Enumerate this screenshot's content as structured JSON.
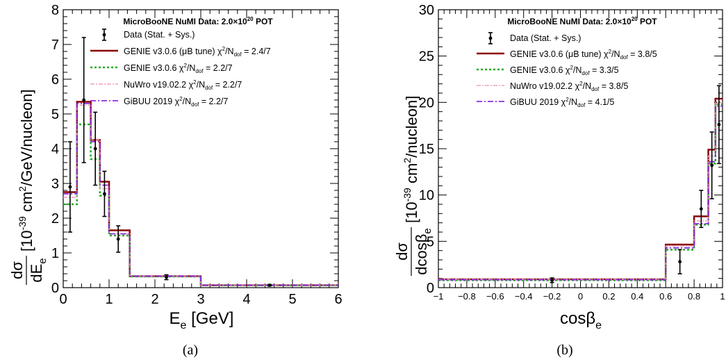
{
  "captions": [
    "(a)",
    "(b)"
  ],
  "chart_data": [
    {
      "type": "line",
      "title_main": "MicroBooNE NuMI Data: 2.0×10",
      "title_sup": "20",
      "title_tail": " POT",
      "xlabel": "E",
      "xlabel_sub": "e",
      "xlabel_tail": " [GeV]",
      "ylabel_frac_num": "dσ",
      "ylabel_frac_den": "dE",
      "ylabel_frac_den_sub": "e",
      "ylabel_pre": "[10",
      "ylabel_exp": "-39",
      "ylabel_mid": " cm",
      "ylabel_exp2": "2",
      "ylabel_post": "/GeV/nucleon]",
      "xlim": [
        0,
        6
      ],
      "ylim": [
        0,
        8
      ],
      "xticks": [
        0,
        1,
        2,
        3,
        4,
        5,
        6
      ],
      "xtick_labels": [
        "0",
        "1",
        "2",
        "3",
        "4",
        "5",
        "6"
      ],
      "yticks": [
        0,
        1,
        2,
        3,
        4,
        5,
        6,
        7,
        8
      ],
      "ytick_labels": [
        "0",
        "1",
        "2",
        "3",
        "4",
        "5",
        "6",
        "7",
        "8"
      ],
      "bin_edges": [
        0,
        0.3,
        0.6,
        0.8,
        1.0,
        1.45,
        3.0,
        6.0
      ],
      "legend": [
        {
          "name": "Data (Stat. + Sys.)",
          "tail": ""
        },
        {
          "name": "GENIE v3.0.6 (μB tune) χ",
          "tail": "= 2.4/7"
        },
        {
          "name": "GENIE v3.0.6 χ",
          "tail": "= 2.2/7"
        },
        {
          "name": "NuWro v19.02.2 χ",
          "tail": "= 2.2/7"
        },
        {
          "name": "GiBUU 2019 χ",
          "tail": "= 2.2/7"
        }
      ],
      "chi_sup": "2",
      "chi_mid": "/N",
      "chi_sub": "dof",
      "data": {
        "x": [
          0.15,
          0.45,
          0.7,
          0.9,
          1.2,
          2.25,
          4.5
        ],
        "y": [
          2.9,
          5.4,
          4.0,
          2.7,
          1.4,
          0.3,
          0.07
        ],
        "yerr": [
          1.3,
          1.8,
          1.05,
          0.65,
          0.38,
          0.07,
          0.02
        ]
      },
      "series": [
        {
          "values": [
            2.75,
            5.35,
            4.25,
            3.05,
            1.65,
            0.33,
            0.07
          ],
          "color": "#8b0000",
          "dash": "",
          "width": 2.5
        },
        {
          "values": [
            2.4,
            4.7,
            3.7,
            2.65,
            1.5,
            0.32,
            0.065
          ],
          "color": "#22aa22",
          "dash": "3,3",
          "width": 2.5
        },
        {
          "values": [
            2.6,
            5.25,
            4.25,
            2.85,
            1.55,
            0.33,
            0.07
          ],
          "color": "#f0a0c0",
          "dash": "6,2,2,2",
          "width": 1.5
        },
        {
          "values": [
            2.7,
            5.3,
            4.2,
            2.95,
            1.55,
            0.33,
            0.07
          ],
          "color": "#8a2be2",
          "dash": "8,3,2,3",
          "width": 1.8
        }
      ]
    },
    {
      "type": "line",
      "title_main": "MicroBooNE NuMI Data: 2.0×10",
      "title_sup": "20",
      "title_tail": " POT",
      "xlabel": "cosβ",
      "xlabel_sub": "e",
      "xlabel_tail": "",
      "ylabel_frac_num": "dσ",
      "ylabel_frac_den": "dcosβ",
      "ylabel_frac_den_sub": "e",
      "ylabel_pre": "[10",
      "ylabel_exp": "-39",
      "ylabel_mid": " cm",
      "ylabel_exp2": "2",
      "ylabel_post": "/nucleon]",
      "xlim": [
        -1,
        1
      ],
      "ylim": [
        0,
        30
      ],
      "xticks": [
        -1,
        -0.8,
        -0.6,
        -0.4,
        -0.2,
        0,
        0.2,
        0.4,
        0.6,
        0.8,
        1
      ],
      "xtick_labels": [
        "−1",
        "−0.8",
        "−0.6",
        "−0.4",
        "−0.2",
        "0",
        "0.2",
        "0.4",
        "0.6",
        "0.8",
        "1"
      ],
      "yticks": [
        0,
        5,
        10,
        15,
        20,
        25,
        30
      ],
      "ytick_labels": [
        "0",
        "5",
        "10",
        "15",
        "20",
        "25",
        "30"
      ],
      "bin_edges": [
        -1,
        0.6,
        0.8,
        0.9,
        0.95,
        1.0
      ],
      "legend": [
        {
          "name": "Data (Stat. + Sys.)",
          "tail": ""
        },
        {
          "name": "GENIE v3.0.6 (μB tune) χ",
          "tail": "= 3.8/5"
        },
        {
          "name": "GENIE v3.0.6 χ",
          "tail": "= 3.3/5"
        },
        {
          "name": "NuWro v19.02.2 χ",
          "tail": "= 3.8/5"
        },
        {
          "name": "GiBUU 2019 χ",
          "tail": "= 4.1/5"
        }
      ],
      "chi_sup": "2",
      "chi_mid": "/N",
      "chi_sub": "dof",
      "data": {
        "x": [
          -0.2,
          0.7,
          0.85,
          0.925,
          0.975
        ],
        "y": [
          0.8,
          2.8,
          8.5,
          13.2,
          17.6
        ],
        "yerr": [
          0.25,
          1.3,
          2.0,
          3.6,
          4.2
        ]
      },
      "series": [
        {
          "values": [
            0.9,
            4.65,
            7.7,
            14.9,
            20.4
          ],
          "color": "#8b0000",
          "dash": "",
          "width": 2.5
        },
        {
          "values": [
            0.8,
            4.1,
            6.8,
            13.4,
            19.8
          ],
          "color": "#22aa22",
          "dash": "3,3",
          "width": 2.5
        },
        {
          "values": [
            0.9,
            4.5,
            7.2,
            14.2,
            20.0
          ],
          "color": "#f0a0c0",
          "dash": "6,2,2,2",
          "width": 1.5
        },
        {
          "values": [
            0.85,
            4.3,
            6.9,
            13.6,
            19.6
          ],
          "color": "#8a2be2",
          "dash": "8,3,2,3",
          "width": 1.8
        }
      ]
    }
  ]
}
